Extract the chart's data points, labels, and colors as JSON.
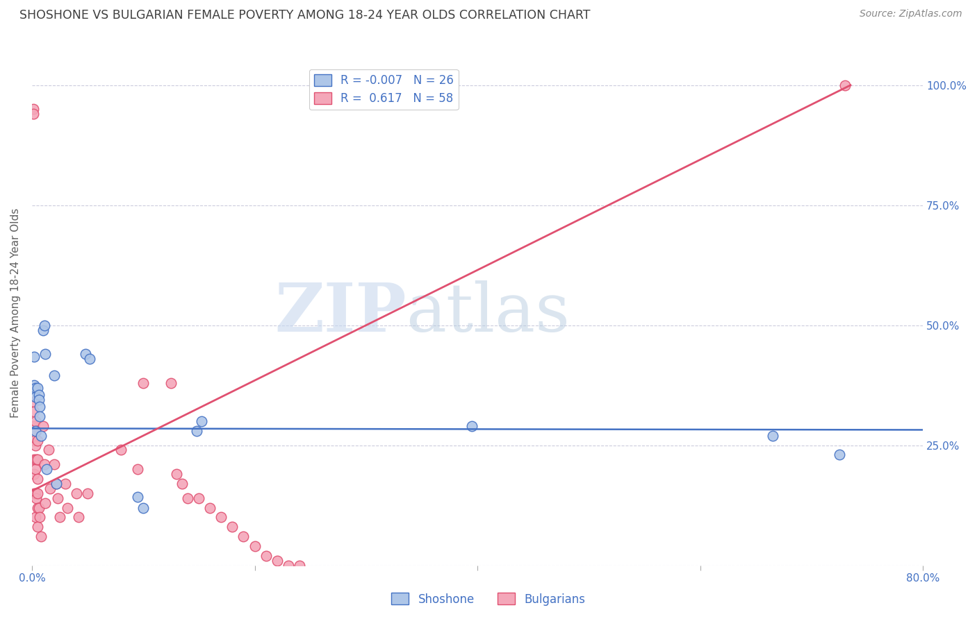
{
  "title": "SHOSHONE VS BULGARIAN FEMALE POVERTY AMONG 18-24 YEAR OLDS CORRELATION CHART",
  "source": "Source: ZipAtlas.com",
  "ylabel": "Female Poverty Among 18-24 Year Olds",
  "watermark_zip": "ZIP",
  "watermark_atlas": "atlas",
  "xmin": 0.0,
  "xmax": 0.8,
  "ymin": 0.0,
  "ymax": 1.05,
  "xticks": [
    0.0,
    0.2,
    0.4,
    0.6,
    0.8
  ],
  "xticklabels": [
    "0.0%",
    "",
    "",
    "",
    "80.0%"
  ],
  "yticks": [
    0.0,
    0.25,
    0.5,
    0.75,
    1.0
  ],
  "yticklabels_right": [
    "",
    "25.0%",
    "50.0%",
    "75.0%",
    "100.0%"
  ],
  "shoshone_R": "-0.007",
  "shoshone_N": "26",
  "bulgarian_R": "0.617",
  "bulgarian_N": "58",
  "shoshone_color": "#aec6e8",
  "shoshone_edge_color": "#4472c4",
  "bulgarian_color": "#f4a7b9",
  "bulgarian_edge_color": "#e05070",
  "shoshone_line_color": "#4472c4",
  "bulgarian_line_color": "#e05070",
  "legend_text_color": "#4472c4",
  "title_color": "#404040",
  "axis_label_color": "#606060",
  "tick_color": "#4472c4",
  "grid_color": "#ccccdd",
  "shoshone_points_x": [
    0.002,
    0.002,
    0.003,
    0.003,
    0.003,
    0.005,
    0.006,
    0.006,
    0.007,
    0.007,
    0.008,
    0.01,
    0.011,
    0.012,
    0.013,
    0.02,
    0.022,
    0.048,
    0.052,
    0.095,
    0.1,
    0.148,
    0.152,
    0.395,
    0.665,
    0.725
  ],
  "shoshone_points_y": [
    0.435,
    0.375,
    0.37,
    0.35,
    0.28,
    0.37,
    0.355,
    0.345,
    0.33,
    0.31,
    0.27,
    0.49,
    0.5,
    0.44,
    0.2,
    0.395,
    0.17,
    0.44,
    0.43,
    0.142,
    0.12,
    0.28,
    0.3,
    0.29,
    0.27,
    0.23
  ],
  "bulgarian_points_x": [
    0.001,
    0.001,
    0.002,
    0.002,
    0.002,
    0.002,
    0.002,
    0.002,
    0.002,
    0.003,
    0.003,
    0.003,
    0.003,
    0.003,
    0.004,
    0.004,
    0.004,
    0.005,
    0.005,
    0.005,
    0.005,
    0.005,
    0.005,
    0.006,
    0.007,
    0.008,
    0.01,
    0.011,
    0.012,
    0.015,
    0.016,
    0.02,
    0.022,
    0.023,
    0.025,
    0.03,
    0.032,
    0.04,
    0.042,
    0.05,
    0.08,
    0.095,
    0.1,
    0.125,
    0.13,
    0.135,
    0.14,
    0.15,
    0.16,
    0.17,
    0.18,
    0.19,
    0.2,
    0.21,
    0.22,
    0.23,
    0.24,
    0.73
  ],
  "bulgarian_points_y": [
    0.95,
    0.94,
    0.34,
    0.32,
    0.29,
    0.26,
    0.22,
    0.19,
    0.15,
    0.3,
    0.25,
    0.2,
    0.15,
    0.1,
    0.28,
    0.22,
    0.14,
    0.26,
    0.22,
    0.18,
    0.15,
    0.12,
    0.08,
    0.12,
    0.1,
    0.06,
    0.29,
    0.21,
    0.13,
    0.24,
    0.16,
    0.21,
    0.17,
    0.14,
    0.1,
    0.17,
    0.12,
    0.15,
    0.1,
    0.15,
    0.24,
    0.2,
    0.38,
    0.38,
    0.19,
    0.17,
    0.14,
    0.14,
    0.12,
    0.1,
    0.08,
    0.06,
    0.04,
    0.02,
    0.01,
    0.0,
    0.0,
    1.0
  ],
  "shoshone_trend_x": [
    0.0,
    0.8
  ],
  "shoshone_trend_y": [
    0.285,
    0.282
  ],
  "bulgarian_trend_x": [
    0.0,
    0.735
  ],
  "bulgarian_trend_y": [
    0.155,
    1.0
  ],
  "figsize": [
    14.06,
    8.92
  ],
  "dpi": 100
}
